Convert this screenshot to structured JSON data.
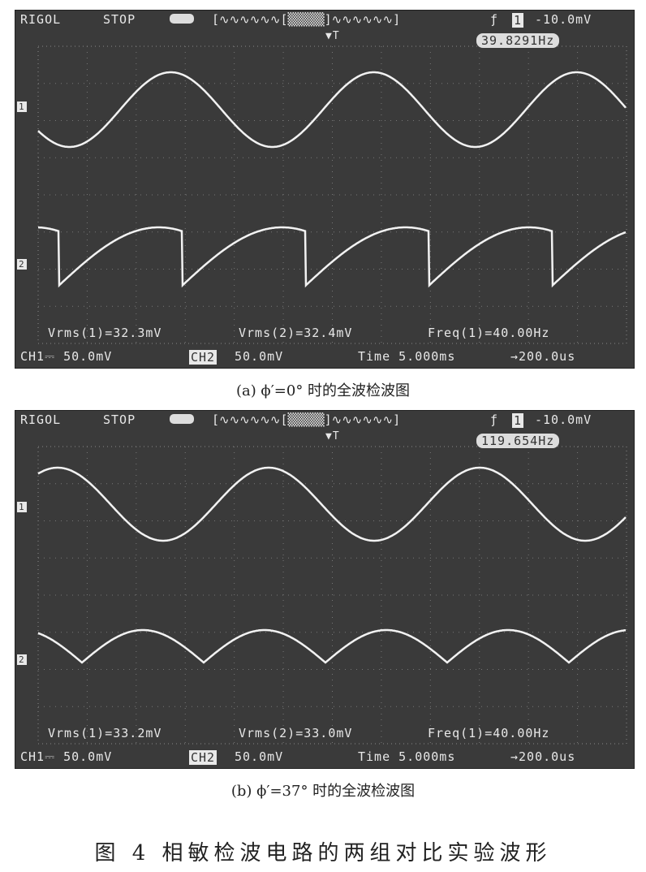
{
  "panels": [
    {
      "brand": "RIGOL",
      "status": "STOP",
      "trigger_level": "-10.0mV",
      "trigger_channel": "1",
      "counter": "39.8291Hz",
      "ch1_marker": "1",
      "ch2_marker": "2",
      "measure": [
        "Vrms(1)=32.3mV",
        "Vrms(2)=32.4mV",
        "Freq(1)=40.00Hz"
      ],
      "ch1_scale": "CH1⎓ 50.0mV",
      "ch2_label": "CH2",
      "ch2_scale": "50.0mV",
      "timebase": "Time 5.000ms",
      "trig_offset": "→200.0us",
      "caption": "(a)  ϕ′=0° 时的全波检波图"
    },
    {
      "brand": "RIGOL",
      "status": "STOP",
      "trigger_level": "-10.0mV",
      "trigger_channel": "1",
      "counter": "119.654Hz",
      "ch1_marker": "1",
      "ch2_marker": "2",
      "measure": [
        "Vrms(1)=33.2mV",
        "Vrms(2)=33.0mV",
        "Freq(1)=40.00Hz"
      ],
      "ch1_scale": "CH1⎓ 50.0mV",
      "ch2_label": "CH2",
      "ch2_scale": "50.0mV",
      "timebase": "Time 5.000ms",
      "trig_offset": "→200.0us",
      "caption": "(b)  ϕ′=37° 时的全波检波图"
    }
  ],
  "figure_caption": "图 4   相敏检波电路的两组对比实验波形"
}
